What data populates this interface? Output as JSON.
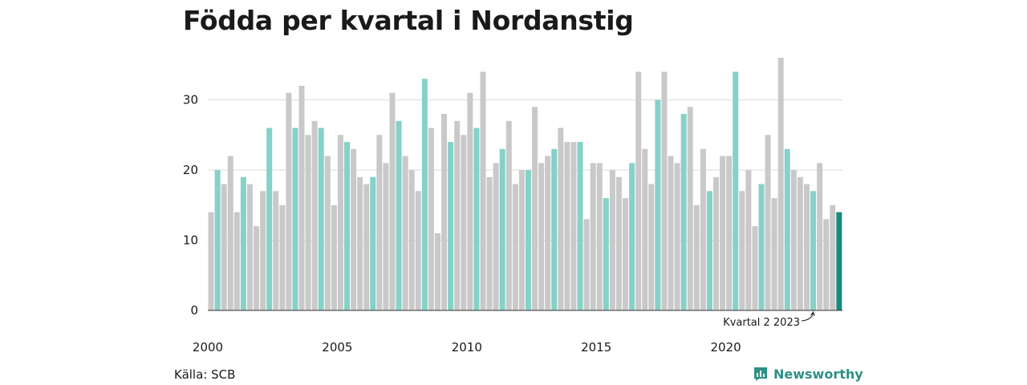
{
  "title": "Födda per kvartal i Nordanstig",
  "source": "Källa: SCB",
  "brand": {
    "name": "Newsworthy",
    "icon": "newsworthy-logo-icon"
  },
  "colors": {
    "q2": "#86d1c8",
    "other": "#c9c9c9",
    "highlight": "#1b8a7f",
    "grid": "#dddddd"
  },
  "chart_data": {
    "type": "bar",
    "title": "Födda per kvartal i Nordanstig",
    "xlabel": "",
    "ylabel": "",
    "ylim": [
      0,
      36
    ],
    "yticks": [
      0,
      10,
      20,
      30
    ],
    "xticks": [
      "2000",
      "2005",
      "2010",
      "2015",
      "2020"
    ],
    "grid": true,
    "start_year": 2000,
    "highlight_note": "Kvartal 2 2023",
    "values": [
      14,
      20,
      18,
      22,
      14,
      19,
      18,
      12,
      17,
      26,
      17,
      15,
      31,
      26,
      32,
      25,
      27,
      26,
      22,
      15,
      25,
      24,
      23,
      19,
      18,
      19,
      25,
      21,
      31,
      27,
      22,
      20,
      17,
      33,
      26,
      11,
      28,
      24,
      27,
      25,
      31,
      26,
      34,
      19,
      21,
      23,
      27,
      18,
      20,
      20,
      29,
      21,
      22,
      23,
      26,
      24,
      24,
      24,
      13,
      21,
      21,
      16,
      20,
      19,
      16,
      21,
      34,
      23,
      18,
      30,
      34,
      22,
      21,
      28,
      29,
      15,
      23,
      17,
      19,
      22,
      22,
      34,
      17,
      20,
      12,
      18,
      25,
      16,
      36,
      23,
      20,
      19,
      18,
      17,
      21,
      13,
      15,
      14
    ]
  }
}
